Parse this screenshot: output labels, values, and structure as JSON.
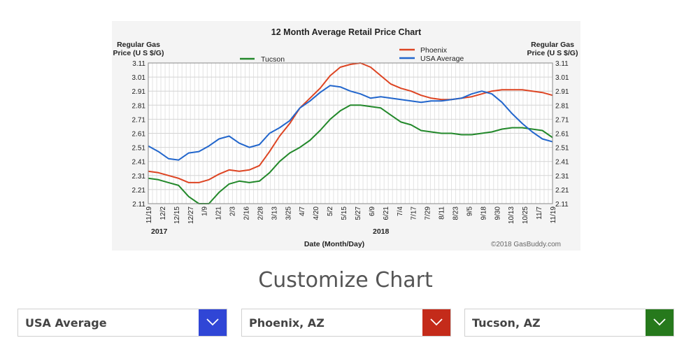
{
  "chart_data": {
    "type": "line",
    "title": "12 Month Average Retail Price Chart",
    "ylabel_left": "Regular Gas Price (U S $/G)",
    "ylabel_right": "Regular Gas Price (U S $/G)",
    "xlabel": "Date (Month/Day)",
    "year_labels": [
      "2017",
      "2018"
    ],
    "x_ticks": [
      "11/19",
      "12/2",
      "12/15",
      "12/27",
      "1/9",
      "1/21",
      "2/3",
      "2/16",
      "2/28",
      "3/13",
      "3/25",
      "4/7",
      "4/20",
      "5/2",
      "5/15",
      "5/27",
      "6/9",
      "6/21",
      "7/4",
      "7/17",
      "7/29",
      "8/11",
      "8/23",
      "9/5",
      "9/18",
      "9/30",
      "10/13",
      "10/25",
      "11/7",
      "11/19"
    ],
    "y_ticks": [
      "3.11",
      "3.01",
      "2.91",
      "2.81",
      "2.71",
      "2.61",
      "2.51",
      "2.41",
      "2.31",
      "2.21",
      "2.11"
    ],
    "ylim": [
      2.11,
      3.11
    ],
    "grid": true,
    "legend": [
      "Tucson",
      "Phoenix",
      "USA Average"
    ],
    "legend_placement": "top",
    "credit": "©2018 GasBuddy.com",
    "series": [
      {
        "name": "Tucson",
        "color": "#22882a",
        "values": [
          2.29,
          2.28,
          2.26,
          2.24,
          2.16,
          2.11,
          2.11,
          2.19,
          2.25,
          2.27,
          2.26,
          2.27,
          2.33,
          2.41,
          2.47,
          2.51,
          2.56,
          2.63,
          2.71,
          2.77,
          2.81,
          2.81,
          2.8,
          2.79,
          2.74,
          2.69,
          2.67,
          2.63,
          2.62,
          2.61,
          2.61,
          2.6,
          2.6,
          2.61,
          2.62,
          2.64,
          2.65,
          2.65,
          2.64,
          2.63,
          2.58
        ]
      },
      {
        "name": "Phoenix",
        "color": "#dd4422",
        "values": [
          2.34,
          2.33,
          2.31,
          2.29,
          2.26,
          2.26,
          2.28,
          2.32,
          2.35,
          2.34,
          2.35,
          2.38,
          2.48,
          2.59,
          2.68,
          2.79,
          2.86,
          2.93,
          3.02,
          3.08,
          3.1,
          3.11,
          3.08,
          3.02,
          2.96,
          2.93,
          2.91,
          2.88,
          2.86,
          2.85,
          2.85,
          2.86,
          2.87,
          2.89,
          2.91,
          2.92,
          2.92,
          2.92,
          2.91,
          2.9,
          2.88
        ]
      },
      {
        "name": "USA Average",
        "color": "#2266cc",
        "values": [
          2.52,
          2.48,
          2.43,
          2.42,
          2.47,
          2.48,
          2.52,
          2.57,
          2.59,
          2.54,
          2.51,
          2.53,
          2.61,
          2.65,
          2.7,
          2.79,
          2.84,
          2.9,
          2.95,
          2.94,
          2.91,
          2.89,
          2.86,
          2.87,
          2.86,
          2.85,
          2.84,
          2.83,
          2.84,
          2.84,
          2.85,
          2.86,
          2.89,
          2.91,
          2.89,
          2.83,
          2.75,
          2.68,
          2.62,
          2.57,
          2.55
        ]
      }
    ]
  },
  "customize": {
    "heading": "Customize Chart",
    "selects": [
      {
        "label": "USA Average",
        "color": "#3046d6"
      },
      {
        "label": "Phoenix, AZ",
        "color": "#c42b1a"
      },
      {
        "label": "Tucson, AZ",
        "color": "#26791c"
      }
    ]
  }
}
